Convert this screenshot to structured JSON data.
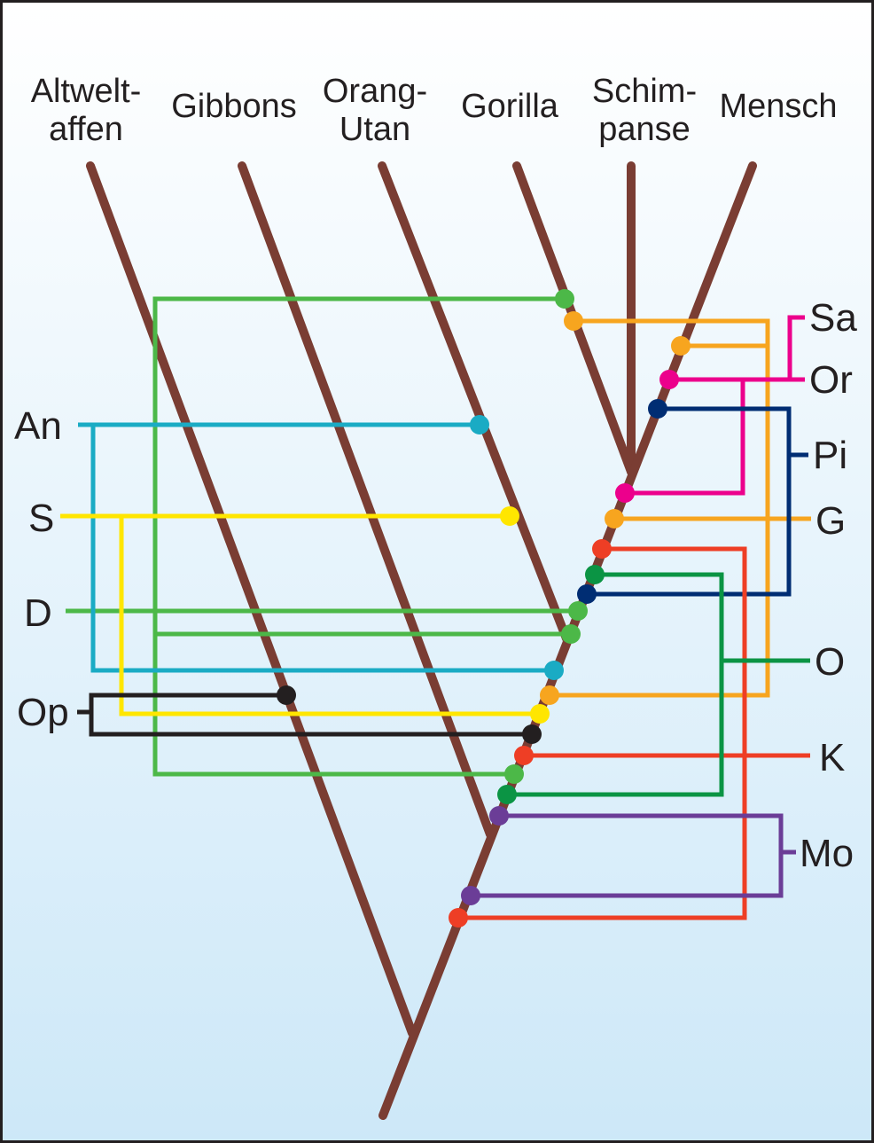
{
  "taxa": [
    {
      "line1": "Altwelt-",
      "line2": "affen"
    },
    {
      "line1": "",
      "line2": "Gibbons"
    },
    {
      "line1": "Orang-",
      "line2": "Utan"
    },
    {
      "line1": "",
      "line2": "Gorilla"
    },
    {
      "line1": "Schim-",
      "line2": "panse"
    },
    {
      "line1": "",
      "line2": "Mensch"
    }
  ],
  "left_labels": [
    "An",
    "S",
    "D",
    "Op"
  ],
  "right_labels": [
    "Sa",
    "Or",
    "Pi",
    "G",
    "O",
    "K",
    "Mo"
  ],
  "colors": {
    "branch": "#7a3d33",
    "green": "#4cb848",
    "cyan": "#1aabc4",
    "yellow": "#ffe600",
    "black": "#231f20",
    "orange": "#f7a51f",
    "magenta": "#ec008c",
    "navy": "#002d73",
    "red": "#ee3e25",
    "darkgreen": "#0b9444",
    "purple": "#6b3d97"
  }
}
